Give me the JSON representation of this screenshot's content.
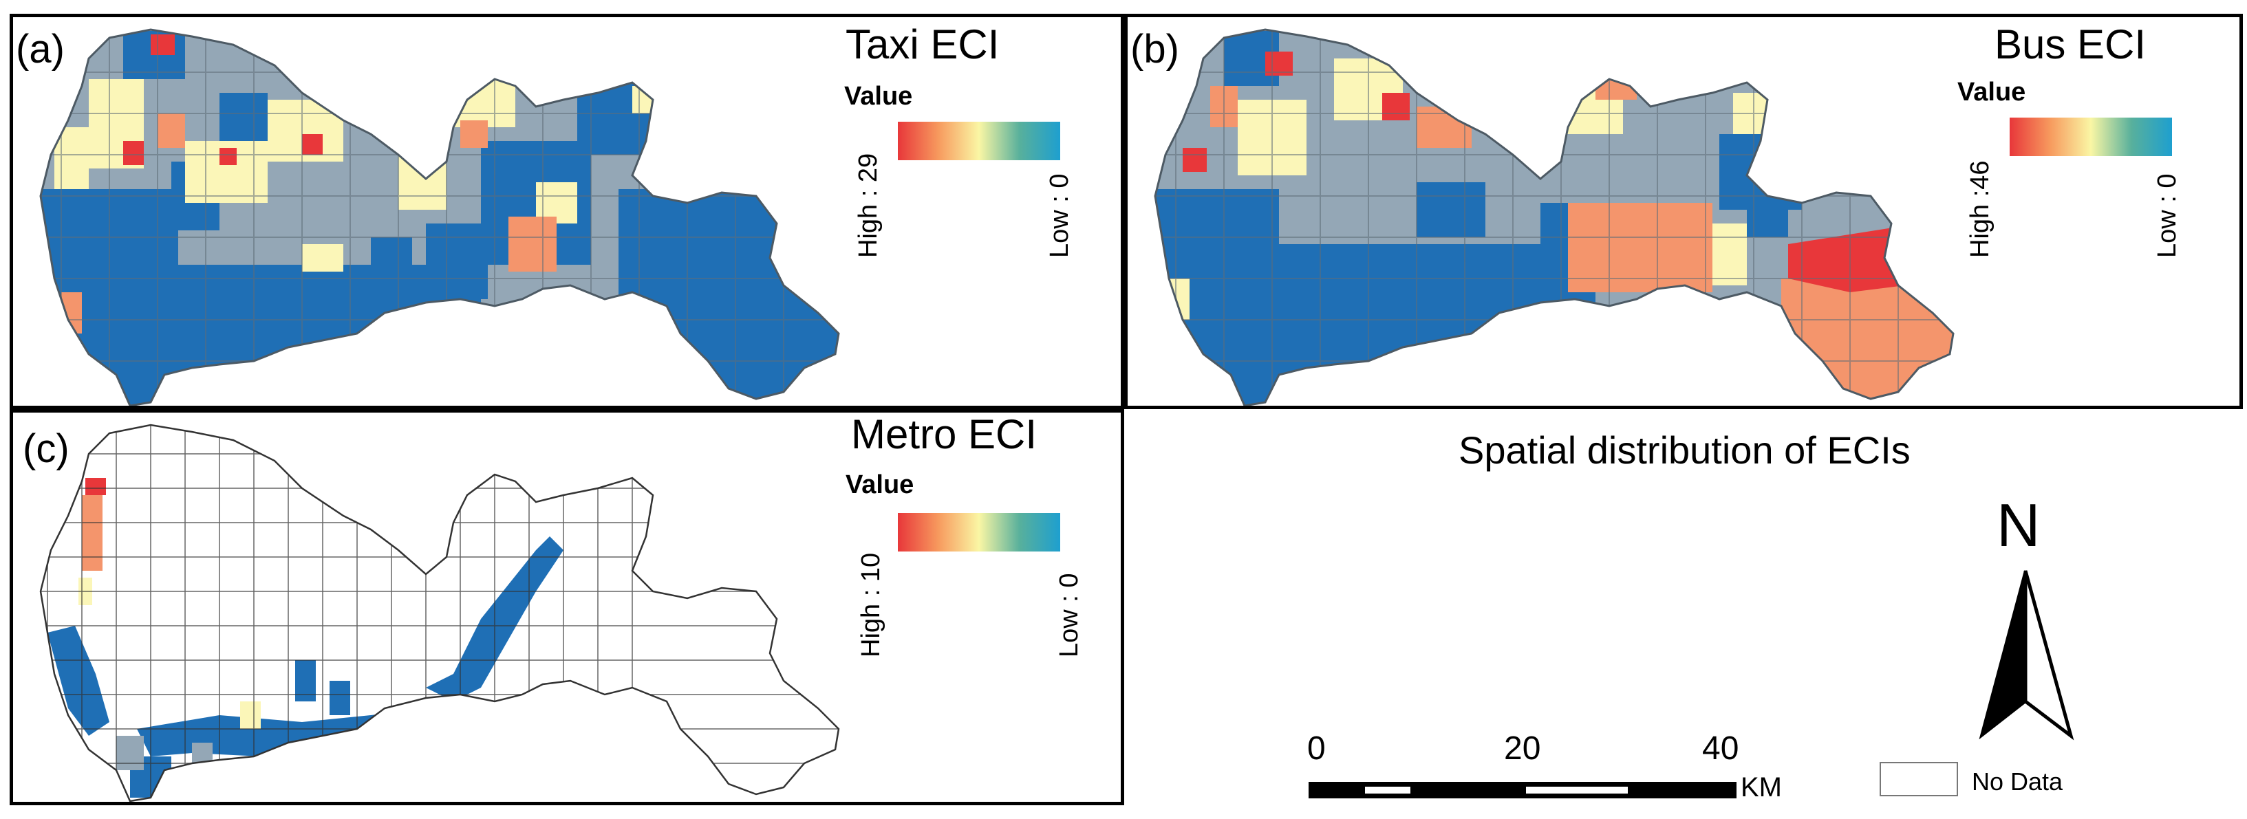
{
  "figure": {
    "title": "Spatial distribution of ECIs"
  },
  "legend_header": "Value",
  "colors": {
    "no_data": "#ffffff",
    "class_low": "#1f6fb5",
    "class_mid_low": "#94a7b6",
    "class_mid": "#fbf6b8",
    "class_mid_high": "#f4956c",
    "class_high": "#e8373a",
    "ramp_high": "#e8373a",
    "ramp_orange": "#f79a5e",
    "ramp_yellow": "#faf6a4",
    "ramp_teal": "#58b09c",
    "ramp_low": "#1e9fcf",
    "boundary": "#5f6d78"
  },
  "panels": [
    {
      "id": "a",
      "label": "(a)",
      "title": "Taxi ECI",
      "value_label": "Value",
      "high_label": "High : 29",
      "low_label": "Low : 0",
      "high_value": 29,
      "low_value": 0
    },
    {
      "id": "b",
      "label": "(b)",
      "title": "Bus ECI",
      "value_label": "Value",
      "high_label": "High :46",
      "low_label": "Low : 0",
      "high_value": 46,
      "low_value": 0
    },
    {
      "id": "c",
      "label": "(c)",
      "title": "Metro ECI",
      "value_label": "Value",
      "high_label": "High : 10",
      "low_label": "Low : 0",
      "high_value": 10,
      "low_value": 0
    }
  ],
  "north_arrow": {
    "label": "N"
  },
  "scale_bar": {
    "ticks": [
      "0",
      "20",
      "40"
    ],
    "unit": "KM"
  },
  "no_data_legend": {
    "label": "No Data"
  }
}
